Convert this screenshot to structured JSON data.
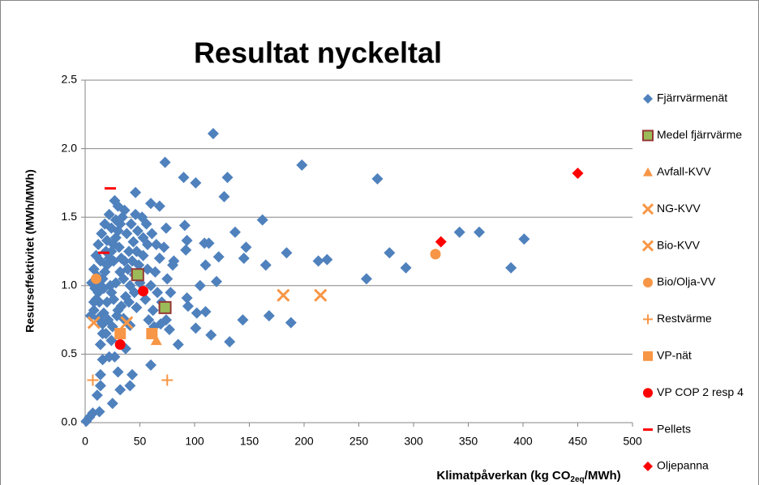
{
  "chart_data": {
    "type": "scatter",
    "title": "Resultat nyckeltal",
    "ylabel": "Resurseffektivitet (MWh/MWh)",
    "xlabel": [
      "Klimatpåverkan (kg CO",
      "2eq",
      "/MWh)"
    ],
    "xlim": [
      0,
      500
    ],
    "xticks": [
      0,
      50,
      100,
      150,
      200,
      250,
      300,
      350,
      400,
      450,
      500
    ],
    "ylim": [
      0,
      2.5
    ],
    "yticks": [
      {
        "value": 0,
        "label": "0.0"
      },
      0.5,
      {
        "value": 1,
        "label": "1.0"
      },
      1.5,
      {
        "value": 2,
        "label": "2.0"
      },
      2.5
    ],
    "grid": true,
    "legend": "right",
    "series": [
      {
        "name": "Fjärrvärmenät",
        "color": "#4f81bd",
        "marker": "diamond",
        "x": [
          117,
          73,
          198,
          267,
          90,
          130,
          101,
          127,
          162,
          137,
          342,
          360,
          401,
          147,
          278,
          184,
          213,
          221,
          293,
          389,
          165,
          145,
          113,
          109,
          122,
          110,
          257,
          120,
          105,
          168,
          188,
          144,
          132,
          115,
          110,
          102,
          101,
          85,
          60,
          93,
          94,
          81,
          92,
          93,
          91,
          68,
          60,
          46,
          74,
          1,
          4,
          7,
          13,
          25,
          11,
          14,
          32,
          41,
          43,
          30,
          14,
          16,
          22,
          27,
          37,
          14,
          16,
          41,
          47,
          5,
          8,
          10,
          12,
          14,
          16,
          18,
          20,
          22,
          24,
          26,
          28,
          30,
          32,
          34,
          36,
          27,
          30,
          22,
          18,
          15,
          12,
          10,
          8,
          6,
          9,
          13,
          17,
          21,
          25,
          29,
          33,
          37,
          41,
          45,
          49,
          53,
          57,
          61,
          56,
          52,
          48,
          44,
          40,
          36,
          32,
          28,
          24,
          20,
          16,
          19,
          24,
          30,
          35,
          40,
          45,
          50,
          55,
          60,
          64,
          68,
          72,
          66,
          70,
          62,
          58,
          14,
          26,
          38,
          42,
          46,
          20,
          31,
          35,
          26,
          39,
          53,
          47,
          11,
          23,
          17,
          33,
          28,
          24,
          19,
          43,
          57,
          65,
          75,
          78,
          80,
          77,
          74,
          69,
          63,
          8,
          12
        ],
        "y": [
          2.11,
          1.9,
          1.88,
          1.78,
          1.79,
          1.79,
          1.75,
          1.65,
          1.48,
          1.39,
          1.39,
          1.39,
          1.34,
          1.28,
          1.24,
          1.24,
          1.18,
          1.19,
          1.13,
          1.13,
          1.15,
          1.2,
          1.31,
          1.31,
          1.21,
          1.15,
          1.05,
          1.03,
          1.0,
          0.78,
          0.73,
          0.75,
          0.59,
          0.64,
          0.81,
          0.8,
          0.69,
          0.57,
          0.42,
          0.91,
          0.85,
          1.18,
          1.26,
          1.33,
          1.44,
          1.58,
          1.6,
          1.68,
          1.42,
          0.01,
          0.04,
          0.07,
          0.08,
          0.14,
          0.2,
          0.27,
          0.24,
          0.27,
          0.35,
          0.37,
          0.35,
          0.46,
          0.48,
          0.48,
          0.54,
          0.57,
          0.65,
          0.71,
          0.84,
          0.78,
          0.82,
          0.9,
          0.95,
          1.0,
          1.05,
          1.1,
          1.15,
          1.2,
          1.25,
          1.3,
          1.35,
          1.4,
          1.45,
          1.5,
          1.55,
          1.62,
          1.58,
          1.52,
          1.45,
          1.38,
          1.3,
          1.22,
          1.12,
          1.02,
          0.98,
          0.88,
          0.8,
          0.75,
          0.7,
          0.78,
          0.85,
          0.92,
          1.0,
          1.08,
          1.15,
          1.22,
          1.3,
          1.38,
          1.45,
          1.5,
          1.4,
          1.32,
          1.25,
          1.18,
          1.1,
          1.02,
          0.95,
          0.88,
          0.72,
          0.65,
          0.6,
          0.82,
          0.76,
          0.88,
          0.95,
          1.02,
          0.9,
          1.0,
          1.1,
          1.2,
          1.28,
          0.95,
          0.88,
          0.82,
          0.75,
          1.18,
          1.18,
          1.38,
          1.45,
          1.52,
          1.33,
          1.28,
          1.05,
          0.9,
          1.12,
          1.35,
          1.25,
          1.07,
          1.0,
          0.98,
          1.2,
          1.48,
          1.42,
          1.25,
          1.18,
          1.12,
          1.3,
          1.05,
          0.95,
          1.15,
          0.68,
          0.75,
          0.72,
          0.7,
          0.88,
          0.76
        ]
      },
      {
        "name": "Medel fjärrvärme",
        "color": "#9bbb59",
        "edgecolor": "#953735",
        "marker": "square",
        "x": [
          48,
          73
        ],
        "y": [
          1.08,
          0.84
        ]
      },
      {
        "name": "Avfall-KVV",
        "color": "#f79646",
        "marker": "triangle",
        "x": [
          65
        ],
        "y": [
          0.6
        ]
      },
      {
        "name": "NG-KVV",
        "color": "#f79646",
        "marker": "x",
        "x": [
          181,
          215
        ],
        "y": [
          0.93,
          0.93
        ]
      },
      {
        "name": "Bio-KVV",
        "color": "#f79646",
        "marker": "x",
        "x": [
          8,
          38
        ],
        "y": [
          0.73,
          0.73
        ]
      },
      {
        "name": "Bio/Olja-VV",
        "color": "#f79646",
        "marker": "circle",
        "x": [
          10,
          320
        ],
        "y": [
          1.05,
          1.23
        ]
      },
      {
        "name": "Restvärme",
        "color": "#f79646",
        "marker": "plus",
        "x": [
          7,
          75
        ],
        "y": [
          0.31,
          0.31
        ]
      },
      {
        "name": "VP-nät",
        "color": "#f79646",
        "marker": "square",
        "x": [
          32,
          61
        ],
        "y": [
          0.65,
          0.65
        ]
      },
      {
        "name": "VP COP 2 resp 4",
        "color": "#ff0000",
        "marker": "circle",
        "x": [
          32,
          53
        ],
        "y": [
          0.57,
          0.96
        ]
      },
      {
        "name": "Pellets",
        "color": "#ff0000",
        "marker": "dash",
        "x": [
          23,
          17
        ],
        "y": [
          1.71,
          1.24
        ]
      },
      {
        "name": "Oljepanna",
        "color": "#ff0000",
        "marker": "diamond",
        "x": [
          450,
          325
        ],
        "y": [
          1.82,
          1.32
        ]
      }
    ]
  }
}
